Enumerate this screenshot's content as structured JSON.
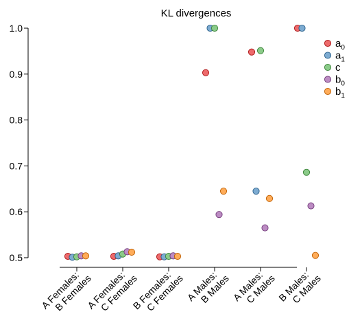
{
  "chart_data": {
    "type": "scatter",
    "title": "KL divergences",
    "xlabel": "",
    "ylabel": "",
    "ylim": [
      0.5,
      1.0
    ],
    "yticks": [
      "0.5",
      "0.6",
      "0.7",
      "0.8",
      "0.9",
      "1.0"
    ],
    "grid": false,
    "legend_placement": "top-right",
    "categories": [
      [
        "A  Females:",
        "B  Females"
      ],
      [
        "A  Females:",
        "C  Females"
      ],
      [
        "B  Females:",
        "C  Females"
      ],
      [
        "A  Males:",
        "B  Males"
      ],
      [
        "A  Males:",
        "C  Males"
      ],
      [
        "B  Males:",
        "C  Males"
      ]
    ],
    "series": [
      {
        "label_base": "a",
        "label_sub": "0",
        "color": "#e41a1c",
        "values": [
          0.503,
          0.503,
          0.502,
          0.903,
          0.948,
          1.0
        ]
      },
      {
        "label_base": "a",
        "label_sub": "1",
        "color": "#377eb8",
        "values": [
          0.501,
          0.504,
          0.502,
          1.0,
          0.645,
          1.0
        ]
      },
      {
        "label_base": "c",
        "label_sub": "",
        "color": "#4daf4a",
        "values": [
          0.502,
          0.508,
          0.503,
          1.0,
          0.951,
          0.686
        ]
      },
      {
        "label_base": "b",
        "label_sub": "0",
        "color": "#984ea3",
        "values": [
          0.504,
          0.513,
          0.504,
          0.594,
          0.565,
          0.613
        ]
      },
      {
        "label_base": "b",
        "label_sub": "1",
        "color": "#ff7f00",
        "values": [
          0.504,
          0.512,
          0.503,
          0.645,
          0.629,
          0.505
        ]
      }
    ]
  }
}
